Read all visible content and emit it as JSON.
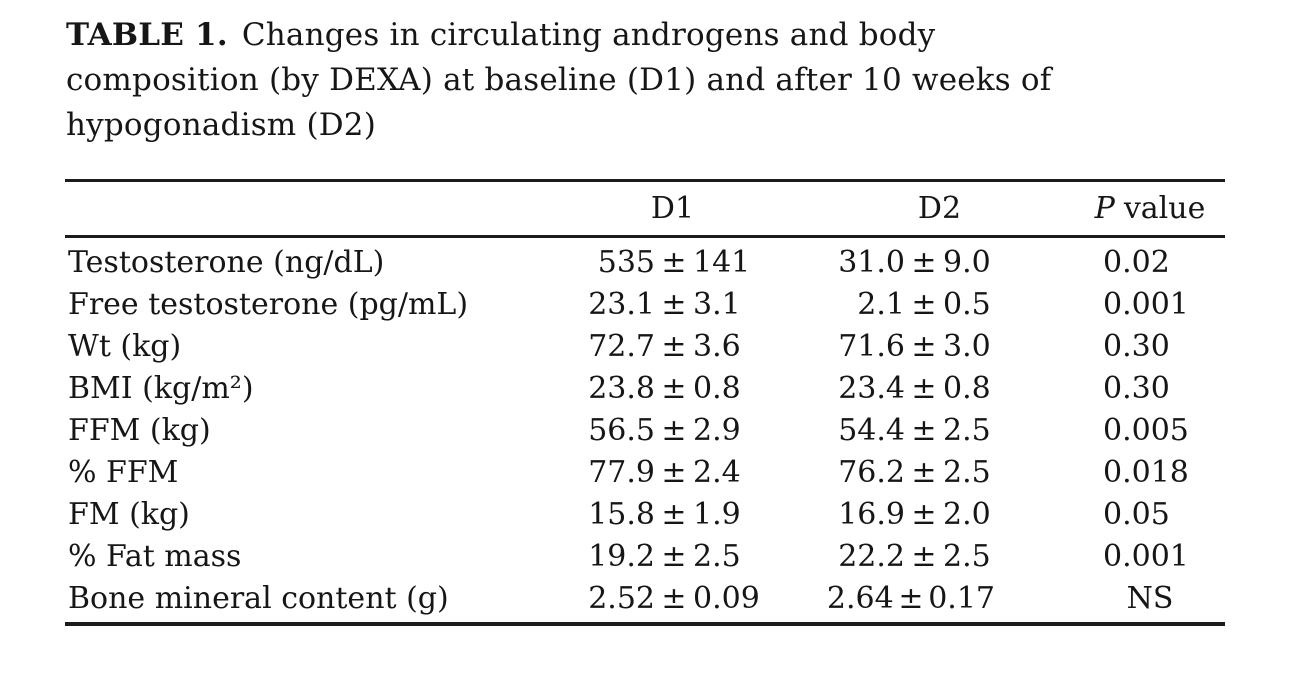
{
  "title": {
    "label": "TABLE 1.",
    "line1": "Changes in circulating androgens and body",
    "line2": "composition (by DEXA) at baseline (D1) and after 10 weeks of",
    "line3": "hypogonadism (D2)"
  },
  "table": {
    "pm": "±",
    "columns": {
      "d1": "D1",
      "d2": "D2",
      "p_italic": "P",
      "p_rest": "value"
    },
    "rows": [
      {
        "label": "Testosterone (ng/dL)",
        "d1_mean": "535",
        "d1_sd": "141",
        "d2_mean": "31.0",
        "d2_sd": "9.0",
        "p": "0.02"
      },
      {
        "label": "Free testosterone (pg/mL)",
        "d1_mean": "23.1",
        "d1_sd": "3.1",
        "d2_mean": "2.1",
        "d2_sd": "0.5",
        "p": "0.001"
      },
      {
        "label": "Wt (kg)",
        "d1_mean": "72.7",
        "d1_sd": "3.6",
        "d2_mean": "71.6",
        "d2_sd": "3.0",
        "p": "0.30"
      },
      {
        "label": "BMI (kg/m²)",
        "d1_mean": "23.8",
        "d1_sd": "0.8",
        "d2_mean": "23.4",
        "d2_sd": "0.8",
        "p": "0.30"
      },
      {
        "label": "FFM (kg)",
        "d1_mean": "56.5",
        "d1_sd": "2.9",
        "d2_mean": "54.4",
        "d2_sd": "2.5",
        "p": "0.005"
      },
      {
        "label": "% FFM",
        "d1_mean": "77.9",
        "d1_sd": "2.4",
        "d2_mean": "76.2",
        "d2_sd": "2.5",
        "p": "0.018"
      },
      {
        "label": "FM (kg)",
        "d1_mean": "15.8",
        "d1_sd": "1.9",
        "d2_mean": "16.9",
        "d2_sd": "2.0",
        "p": "0.05"
      },
      {
        "label": "% Fat mass",
        "d1_mean": "19.2",
        "d1_sd": "2.5",
        "d2_mean": "22.2",
        "d2_sd": "2.5",
        "p": "0.001"
      },
      {
        "label": "Bone mineral content (g)",
        "d1_mean": "2.52",
        "d1_sd": "0.09",
        "d2_mean": "2.64",
        "d2_sd": "0.17",
        "p": "NS"
      }
    ]
  },
  "chart_data": {
    "type": "table",
    "title": "TABLE 1. Changes in circulating androgens and body composition (by DEXA) at baseline (D1) and after 10 weeks of hypogonadism (D2)",
    "columns": [
      "",
      "D1",
      "D2",
      "P value"
    ],
    "rows": [
      [
        "Testosterone (ng/dL)",
        "535 ± 141",
        "31.0 ± 9.0",
        "0.02"
      ],
      [
        "Free testosterone (pg/mL)",
        "23.1 ± 3.1",
        "2.1 ± 0.5",
        "0.001"
      ],
      [
        "Wt (kg)",
        "72.7 ± 3.6",
        "71.6 ± 3.0",
        "0.30"
      ],
      [
        "BMI (kg/m²)",
        "23.8 ± 0.8",
        "23.4 ± 0.8",
        "0.30"
      ],
      [
        "FFM (kg)",
        "56.5 ± 2.9",
        "54.4 ± 2.5",
        "0.005"
      ],
      [
        "% FFM",
        "77.9 ± 2.4",
        "76.2 ± 2.5",
        "0.018"
      ],
      [
        "FM (kg)",
        "15.8 ± 1.9",
        "16.9 ± 2.0",
        "0.05"
      ],
      [
        "% Fat mass",
        "19.2 ± 2.5",
        "22.2 ± 2.5",
        "0.001"
      ],
      [
        "Bone mineral content (g)",
        "2.52 ± 0.09",
        "2.64 ± 0.17",
        "NS"
      ]
    ]
  }
}
